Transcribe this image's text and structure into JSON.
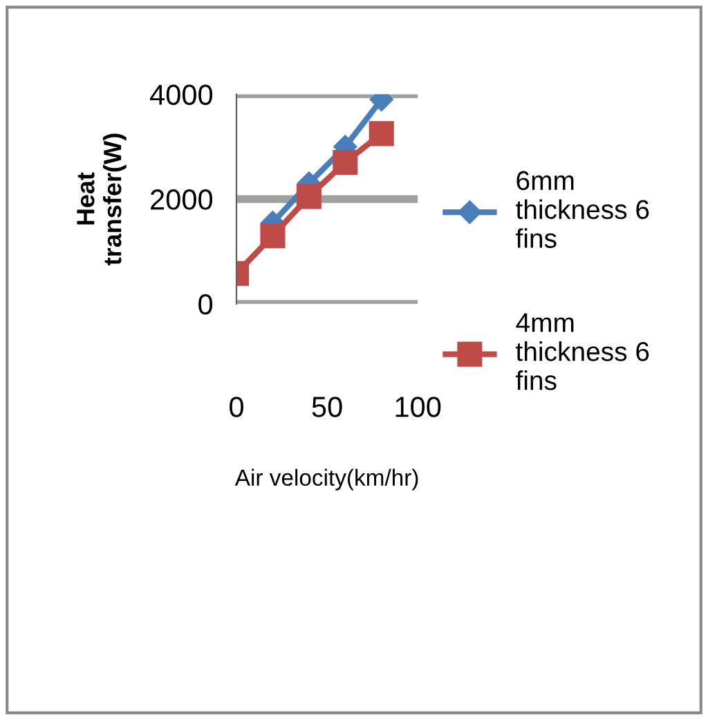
{
  "chart_data": {
    "type": "line",
    "xlabel": "Air velocity(km/hr)",
    "ylabel": "Heat transfer(W)",
    "x": [
      0,
      20,
      40,
      60,
      80
    ],
    "series": [
      {
        "name": "6mm thickness 6 fins",
        "color": "#4a7ebb",
        "marker": "diamond",
        "values": [
          null,
          1550,
          2300,
          3000,
          3900
        ]
      },
      {
        "name": "4mm thickness 6 fins",
        "color": "#be4b48",
        "marker": "square",
        "values": [
          580,
          1300,
          2050,
          2700,
          3250
        ]
      }
    ],
    "xlim": [
      0,
      100
    ],
    "xticks": [
      0,
      50,
      100
    ],
    "ylim": [
      0,
      4000
    ],
    "yticks": [
      0,
      2000,
      4000
    ],
    "grid": "y",
    "legend": "right"
  }
}
